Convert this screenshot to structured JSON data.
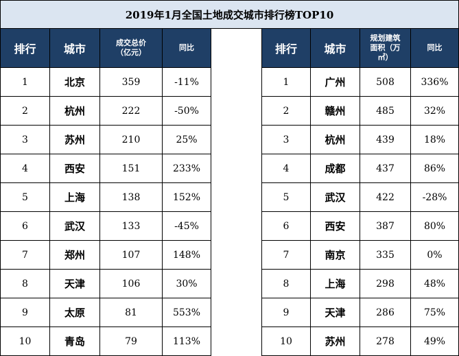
{
  "title": "2019年1月全国土地成交城市排行榜TOP10",
  "left_table": {
    "headers": [
      "排行",
      "城市",
      "成交总价\n（亿元）",
      "同比"
    ],
    "rows": [
      [
        "1",
        "北京",
        "359",
        "-11%"
      ],
      [
        "2",
        "杭州",
        "222",
        "-50%"
      ],
      [
        "3",
        "苏州",
        "210",
        "25%"
      ],
      [
        "4",
        "西安",
        "151",
        "233%"
      ],
      [
        "5",
        "上海",
        "138",
        "152%"
      ],
      [
        "6",
        "武汉",
        "133",
        "-45%"
      ],
      [
        "7",
        "郑州",
        "107",
        "148%"
      ],
      [
        "8",
        "天津",
        "106",
        "30%"
      ],
      [
        "9",
        "太原",
        "81",
        "553%"
      ],
      [
        "10",
        "青岛",
        "79",
        "113%"
      ]
    ]
  },
  "right_table": {
    "headers": [
      "排行",
      "城市",
      "规划建筑\n面积（万\n㎡）",
      "同比"
    ],
    "rows": [
      [
        "1",
        "广州",
        "508",
        "336%"
      ],
      [
        "2",
        "赣州",
        "485",
        "32%"
      ],
      [
        "3",
        "杭州",
        "439",
        "18%"
      ],
      [
        "4",
        "成都",
        "437",
        "86%"
      ],
      [
        "5",
        "武汉",
        "422",
        "-28%"
      ],
      [
        "6",
        "西安",
        "387",
        "80%"
      ],
      [
        "7",
        "南京",
        "335",
        "0%"
      ],
      [
        "8",
        "上海",
        "298",
        "48%"
      ],
      [
        "9",
        "天津",
        "286",
        "75%"
      ],
      [
        "10",
        "苏州",
        "278",
        "49%"
      ]
    ]
  }
}
